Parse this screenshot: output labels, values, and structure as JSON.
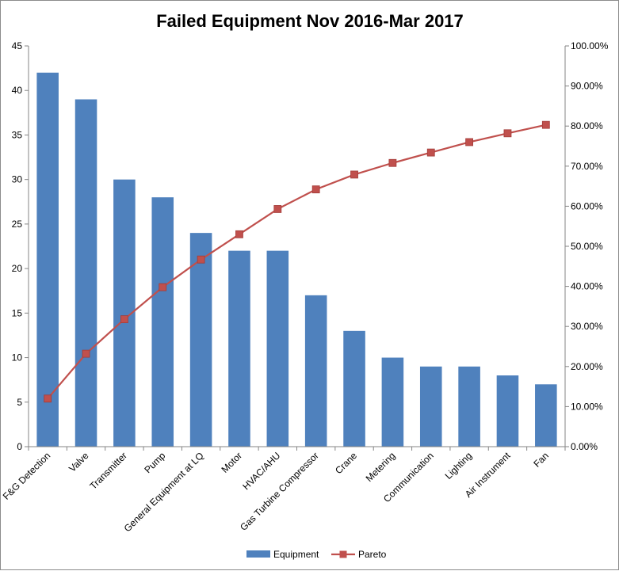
{
  "chart_data": {
    "type": "bar",
    "title": "Failed Equipment Nov 2016-Mar 2017",
    "xlabel": "",
    "ylabel": "",
    "categories": [
      "F&G Detection",
      "Valve",
      "Transmitter",
      "Pump",
      "General Equipment at LQ",
      "Motor",
      "HVAC/AHU",
      "Gas Turbine Compressor",
      "Crane",
      "Metering",
      "Communication",
      "Lighting",
      "Air Instrument",
      "Fan"
    ],
    "ylim": [
      0,
      45
    ],
    "yticks": [
      "0",
      "5",
      "10",
      "15",
      "20",
      "25",
      "30",
      "35",
      "40",
      "45"
    ],
    "y2lim": [
      0,
      100
    ],
    "y2ticks": [
      "0.00%",
      "10.00%",
      "20.00%",
      "30.00%",
      "40.00%",
      "50.00%",
      "60.00%",
      "70.00%",
      "80.00%",
      "90.00%",
      "100.00%"
    ],
    "series": [
      {
        "name": "Equipment",
        "type": "bar",
        "axis": "left",
        "color": "#4f81bd",
        "values": [
          42,
          39,
          30,
          28,
          24,
          22,
          22,
          17,
          13,
          10,
          9,
          9,
          8,
          7
        ]
      },
      {
        "name": "Pareto",
        "type": "line",
        "axis": "right",
        "color": "#c0504d",
        "marker": "square",
        "values": [
          12.0,
          23.2,
          31.8,
          39.8,
          46.7,
          53.0,
          59.3,
          64.2,
          67.9,
          70.8,
          73.4,
          76.0,
          78.2,
          80.3
        ]
      }
    ],
    "grid": false,
    "legend": "bottom-center"
  }
}
